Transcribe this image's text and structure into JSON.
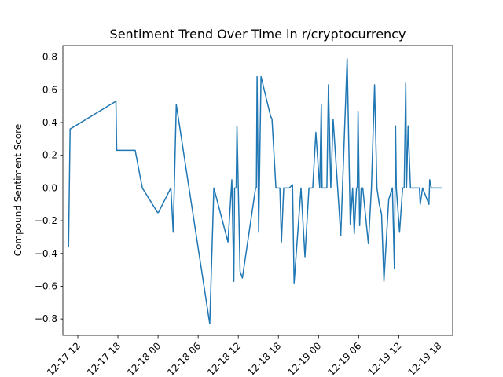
{
  "chart_data": {
    "type": "line",
    "title": "Sentiment Trend Over Time in r/cryptocurrency",
    "xlabel": "",
    "ylabel": "Compound Sentiment Score",
    "ylim": [
      -0.9,
      0.87
    ],
    "xlim": [
      "2024-12-17 09:46",
      "2024-12-19 20:04"
    ],
    "grid": false,
    "legend": "none",
    "line_color": "#1f77b4",
    "x_ticks": [
      "2024-12-17 12:00",
      "2024-12-17 18:00",
      "2024-12-18 00:00",
      "2024-12-18 06:00",
      "2024-12-18 12:00",
      "2024-12-18 18:00",
      "2024-12-19 00:00",
      "2024-12-19 06:00",
      "2024-12-19 12:00",
      "2024-12-19 18:00"
    ],
    "x_tick_labels": [
      "12-17 12",
      "12-17 18",
      "12-18 00",
      "12-18 06",
      "12-18 12",
      "12-18 18",
      "12-19 00",
      "12-19 06",
      "12-19 12",
      "12-19 18"
    ],
    "y_ticks": [
      0.8,
      0.6,
      0.4,
      0.2,
      0.0,
      -0.2,
      -0.4,
      -0.6,
      -0.8
    ],
    "y_tick_labels": [
      "0.8",
      "0.6",
      "0.4",
      "0.2",
      "0.0",
      "−0.2",
      "−0.4",
      "−0.6",
      "−0.8"
    ],
    "series": [
      {
        "x": [
          "2024-12-17 10:37",
          "2024-12-17 10:51",
          "2024-12-17 17:42",
          "2024-12-17 17:49",
          "2024-12-17 19:46",
          "2024-12-17 20:35",
          "2024-12-17 21:39",
          "2024-12-17 23:56",
          "2024-12-18 00:03",
          "2024-12-18 01:55",
          "2024-12-18 02:16",
          "2024-12-18 02:44",
          "2024-12-18 07:44",
          "2024-12-18 08:21",
          "2024-12-18 10:28",
          "2024-12-18 11:02",
          "2024-12-18 11:20",
          "2024-12-18 11:27",
          "2024-12-18 11:41",
          "2024-12-18 11:48",
          "2024-12-18 12:16",
          "2024-12-18 12:37",
          "2024-12-18 14:35",
          "2024-12-18 14:42",
          "2024-12-18 14:49",
          "2024-12-18 15:03",
          "2024-12-18 15:24",
          "2024-12-18 16:49",
          "2024-12-18 17:03",
          "2024-12-18 17:38",
          "2024-12-18 18:13",
          "2024-12-18 18:27",
          "2024-12-18 18:48",
          "2024-12-18 19:38",
          "2024-12-18 20:07",
          "2024-12-18 20:21",
          "2024-12-18 21:23",
          "2024-12-18 21:58",
          "2024-12-18 22:34",
          "2024-12-18 23:08",
          "2024-12-18 23:36",
          "2024-12-19 00:11",
          "2024-12-19 00:25",
          "2024-12-19 00:32",
          "2024-12-19 01:15",
          "2024-12-19 01:29",
          "2024-12-19 01:50",
          "2024-12-19 02:11",
          "2024-12-19 03:20",
          "2024-12-19 04:17",
          "2024-12-19 04:45",
          "2024-12-19 05:06",
          "2024-12-19 05:20",
          "2024-12-19 05:41",
          "2024-12-19 05:48",
          "2024-12-19 05:55",
          "2024-12-19 06:09",
          "2024-12-19 06:23",
          "2024-12-19 06:37",
          "2024-12-19 07:27",
          "2024-12-19 07:55",
          "2024-12-19 08:23",
          "2024-12-19 08:44",
          "2024-12-19 09:05",
          "2024-12-19 09:26",
          "2024-12-19 09:47",
          "2024-12-19 10:30",
          "2024-12-19 11:03",
          "2024-12-19 11:21",
          "2024-12-19 11:31",
          "2024-12-19 11:38",
          "2024-12-19 12:07",
          "2024-12-19 12:35",
          "2024-12-19 12:49",
          "2024-12-19 13:03",
          "2024-12-19 13:10",
          "2024-12-19 13:24",
          "2024-12-19 13:45",
          "2024-12-19 15:06",
          "2024-12-19 15:13",
          "2024-12-19 15:34",
          "2024-12-19 16:31",
          "2024-12-19 16:38",
          "2024-12-19 16:52",
          "2024-12-19 16:59",
          "2024-12-19 17:06",
          "2024-12-19 17:27",
          "2024-12-19 17:41",
          "2024-12-19 17:55",
          "2024-12-19 18:16",
          "2024-12-19 18:30"
        ],
        "y": [
          -0.36,
          0.36,
          0.53,
          0.23,
          0.23,
          0.23,
          0.0,
          -0.15,
          -0.15,
          0.0,
          -0.27,
          0.51,
          -0.83,
          0.0,
          -0.33,
          0.05,
          -0.57,
          0.0,
          0.0,
          0.38,
          -0.51,
          -0.55,
          0.0,
          0.0,
          0.68,
          -0.27,
          0.68,
          0.44,
          0.42,
          0.0,
          0.0,
          -0.33,
          0.0,
          0.0,
          0.02,
          -0.58,
          0.0,
          -0.42,
          0.0,
          0.0,
          0.34,
          0.0,
          0.51,
          0.0,
          0.0,
          0.63,
          0.0,
          0.42,
          -0.29,
          0.79,
          -0.22,
          0.0,
          -0.28,
          0.0,
          0.0,
          0.47,
          -0.23,
          0.0,
          0.0,
          -0.34,
          0.0,
          0.63,
          0.0,
          -0.1,
          -0.16,
          -0.57,
          -0.07,
          0.0,
          -0.49,
          0.38,
          0.0,
          -0.27,
          0.0,
          0.0,
          0.64,
          0.0,
          0.38,
          0.0,
          0.0,
          -0.1,
          0.0,
          -0.1,
          0.05,
          0.0,
          0.0,
          0.0,
          0.0,
          0.0,
          0.0,
          0.0,
          0.0
        ]
      }
    ]
  }
}
